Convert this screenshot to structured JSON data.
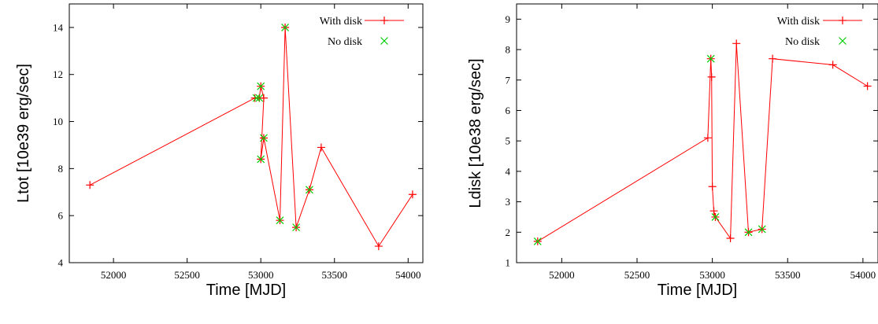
{
  "chart_data": [
    {
      "type": "line",
      "title": "",
      "xlabel": "Time [MJD]",
      "ylabel": "Ltot [10e39 erg/sec]",
      "xlim": [
        51700,
        54100
      ],
      "ylim": [
        4,
        15
      ],
      "xticks": [
        52000,
        52500,
        53000,
        53500,
        54000
      ],
      "yticks": [
        4,
        6,
        8,
        10,
        12,
        14
      ],
      "grid": false,
      "legend": "top-right",
      "series": [
        {
          "name": "With disk",
          "style": "line-plus",
          "color": "#ff0000",
          "x": [
            51840,
            52960,
            52990,
            53000,
            53020,
            53000,
            53020,
            53130,
            53165,
            53240,
            53330,
            53410,
            53800,
            54030
          ],
          "y": [
            7.3,
            11.0,
            11.0,
            11.5,
            11.0,
            8.4,
            9.3,
            5.8,
            14.0,
            5.5,
            7.1,
            8.9,
            4.7,
            6.9
          ]
        },
        {
          "name": "No disk",
          "style": "x-points",
          "color": "#00cc00",
          "x": [
            52970,
            52990,
            53000,
            53000,
            53020,
            53130,
            53165,
            53240,
            53330
          ],
          "y": [
            11.0,
            11.0,
            11.5,
            8.4,
            9.3,
            5.8,
            14.0,
            5.5,
            7.1
          ]
        }
      ]
    },
    {
      "type": "line",
      "title": "",
      "xlabel": "Time [MJD]",
      "ylabel": "Ldisk [10e38 erg/sec]",
      "xlim": [
        51700,
        54100
      ],
      "ylim": [
        1,
        9.5
      ],
      "xticks": [
        52000,
        52500,
        53000,
        53500,
        54000
      ],
      "yticks": [
        1,
        2,
        3,
        4,
        5,
        6,
        7,
        8,
        9
      ],
      "grid": false,
      "legend": "top-right",
      "series": [
        {
          "name": "With disk",
          "style": "line-plus",
          "color": "#ff0000",
          "x": [
            51840,
            52970,
            52990,
            52995,
            53000,
            53010,
            53020,
            53120,
            53160,
            53240,
            53330,
            53400,
            53800,
            54030
          ],
          "y": [
            1.7,
            5.1,
            7.7,
            7.1,
            3.5,
            2.7,
            2.5,
            1.8,
            8.2,
            2.0,
            2.1,
            7.7,
            7.5,
            6.8
          ]
        },
        {
          "name": "No disk",
          "style": "x-points",
          "color": "#00cc00",
          "x": [
            51840,
            52990,
            53020,
            53240,
            53330
          ],
          "y": [
            1.7,
            7.7,
            2.5,
            2.0,
            2.1
          ]
        }
      ]
    }
  ]
}
